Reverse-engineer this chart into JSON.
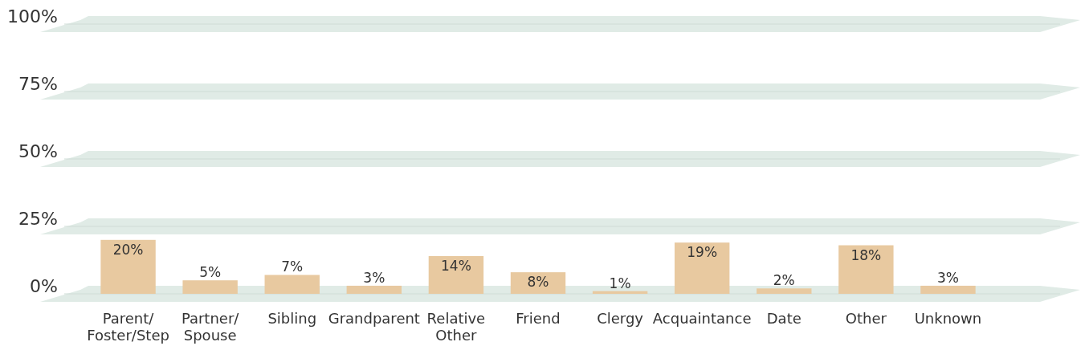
{
  "chart_data": {
    "type": "bar",
    "categories": [
      "Parent/\nFoster/Step",
      "Partner/\nSpouse",
      "Sibling",
      "Grandparent",
      "Relative\nOther",
      "Friend",
      "Clergy",
      "Acquaintance",
      "Date",
      "Other",
      "Unknown"
    ],
    "values": [
      20,
      5,
      7,
      3,
      14,
      8,
      1,
      19,
      2,
      18,
      3
    ],
    "value_labels": [
      "20%",
      "5%",
      "7%",
      "3%",
      "14%",
      "8%",
      "1%",
      "19%",
      "2%",
      "18%",
      "3%"
    ],
    "color": "#e8c9a0",
    "ylim": [
      0,
      100
    ],
    "yticks": [
      {
        "value": 0,
        "label": "0%"
      },
      {
        "value": 25,
        "label": "25%"
      },
      {
        "value": 50,
        "label": "50%"
      },
      {
        "value": 75,
        "label": "75%"
      },
      {
        "value": 100,
        "label": "100%"
      }
    ],
    "grid": true
  }
}
